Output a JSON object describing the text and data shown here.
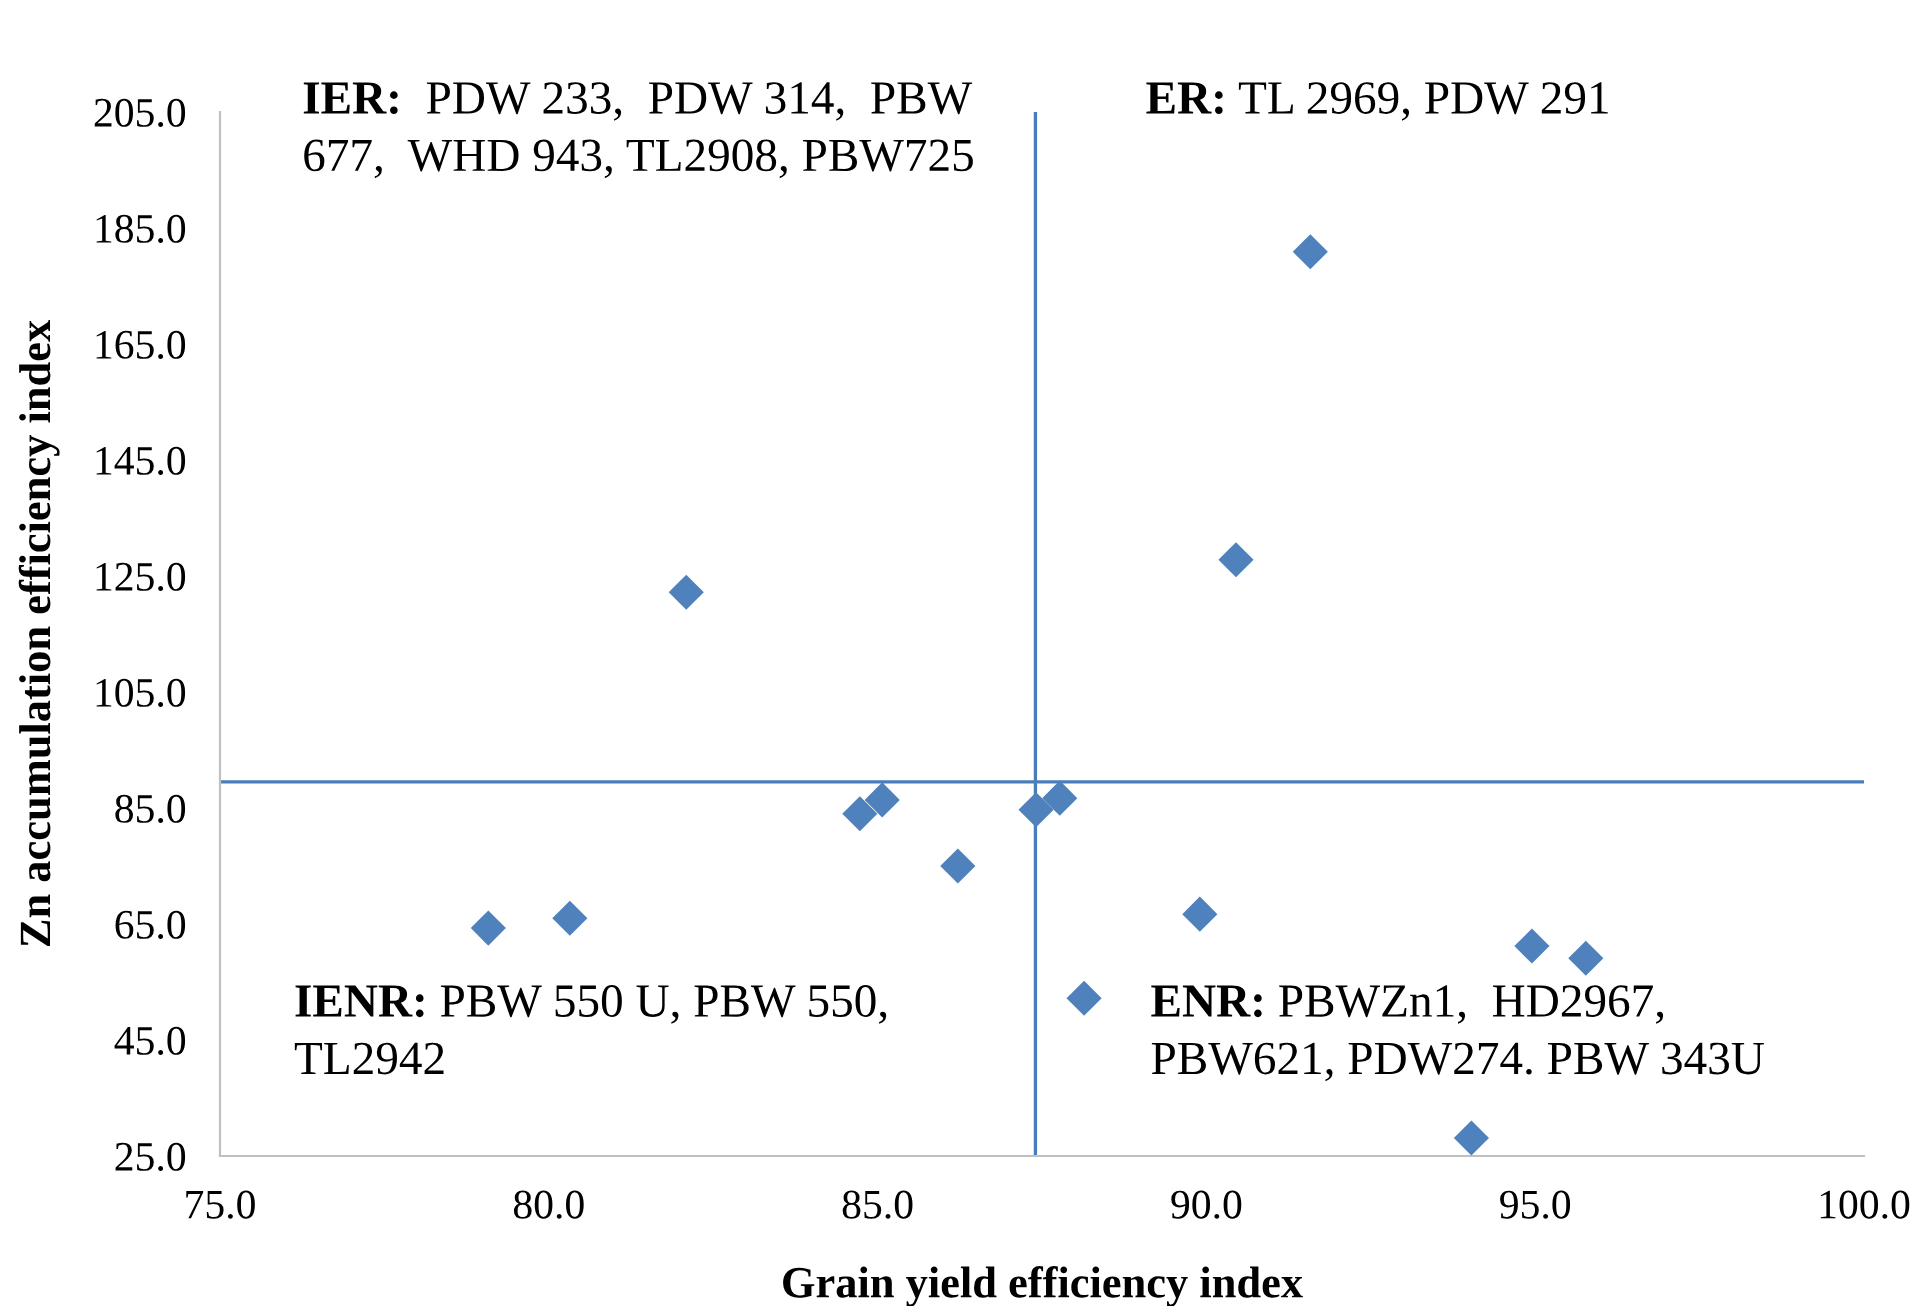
{
  "chart_data": {
    "type": "scatter",
    "xlabel": "Grain yield efficiency index",
    "ylabel": "Zn accumulation efficiency index",
    "x": [
      79.08,
      80.32,
      82.09,
      84.73,
      85.07,
      86.22,
      87.41,
      87.77,
      88.14,
      89.9,
      90.45,
      91.58,
      94.95,
      95.77,
      94.03
    ],
    "series": [
      {
        "color": "#4f81bd",
        "values": [
          64.3,
          66.0,
          122.2,
          84.0,
          86.4,
          75.0,
          84.7,
          86.7,
          52.2,
          66.7,
          127.8,
          180.9,
          61.2,
          59.1,
          28.1
        ]
      }
    ],
    "marker": "diamond",
    "grid": false,
    "xlim": [
      75,
      100
    ],
    "ylim": [
      25,
      205
    ],
    "xticks": [
      {
        "value": 75,
        "label": "75.0"
      },
      {
        "value": 80,
        "label": "80.0"
      },
      {
        "value": 85,
        "label": "85.0"
      },
      {
        "value": 90,
        "label": "90.0"
      },
      {
        "value": 95,
        "label": "95.0"
      },
      {
        "value": 100,
        "label": "100.0"
      }
    ],
    "yticks": [
      {
        "value": 25,
        "label": "25.0"
      },
      {
        "value": 45,
        "label": "45.0"
      },
      {
        "value": 65,
        "label": "65.0"
      },
      {
        "value": 85,
        "label": "85.0"
      },
      {
        "value": 105,
        "label": "105.0"
      },
      {
        "value": 125,
        "label": "125.0"
      },
      {
        "value": 145,
        "label": "145.0"
      },
      {
        "value": 165,
        "label": "165.0"
      },
      {
        "value": 185,
        "label": "185.0"
      },
      {
        "value": 205,
        "label": "205.0"
      }
    ],
    "ref_lines": [
      {
        "axis": "x",
        "value": 87.4,
        "color": "#4a7ebb"
      },
      {
        "axis": "y",
        "value": 89.5,
        "color": "#4a7ebb"
      }
    ],
    "annotations": [
      "IER:  PDW 233,  PDW 314,  PBW\n677,  WHD 943, TL2908, PBW725",
      "ER: TL 2969, PDW 291",
      "IENR: PBW 550 U, PBW 550,\nTL2942",
      "ENR: PBWZn1,  HD2967,\nPBW621, PDW274. PBW 343U"
    ]
  }
}
